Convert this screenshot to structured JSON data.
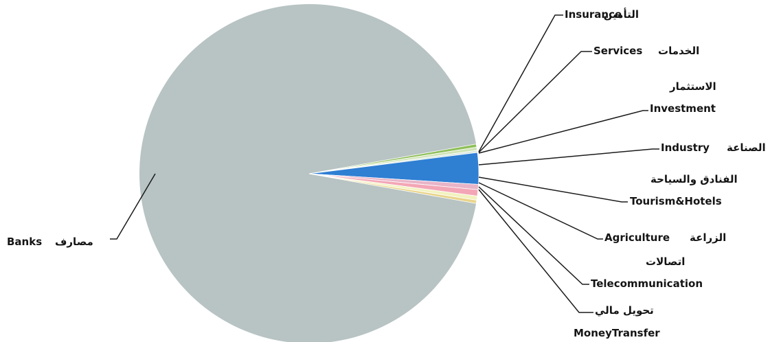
{
  "chart_data": {
    "type": "pie",
    "title": "",
    "slices": [
      {
        "key": "banks",
        "label_en": "Banks",
        "label_ar": "مصارف",
        "value": 94.4,
        "color": "#b8c3c3"
      },
      {
        "key": "insurance",
        "label_en": "Insurance",
        "label_ar": "التأمين",
        "value": 0.3,
        "color": "#8fbf5a"
      },
      {
        "key": "services",
        "label_en": "Services",
        "label_ar": "الخدمات",
        "value": 0.3,
        "color": "#cfe3b5"
      },
      {
        "key": "investment",
        "label_en": "Investment",
        "label_ar": "الاستثمار",
        "value": 0.2,
        "color": "#d9e8e0"
      },
      {
        "key": "industry",
        "label_en": "Industry",
        "label_ar": "الصناعة",
        "value": 3.0,
        "color": "#2f7fd3"
      },
      {
        "key": "tourism",
        "label_en": "Tourism&Hotels",
        "label_ar": "الفنادق والسياحة",
        "value": 0.5,
        "color": "#e8b4c8"
      },
      {
        "key": "agriculture",
        "label_en": "Agriculture",
        "label_ar": "الزراعة",
        "value": 0.6,
        "color": "#f3a6b6"
      },
      {
        "key": "telecom",
        "label_en": "Telecommunication",
        "label_ar": "اتصالات",
        "value": 0.4,
        "color": "#f2f2c0"
      },
      {
        "key": "moneytransfer",
        "label_en": "MoneyTransfer",
        "label_ar": "تحويل مالي",
        "value": 0.3,
        "color": "#e9d48a"
      }
    ],
    "legend": "none",
    "grid": false
  }
}
